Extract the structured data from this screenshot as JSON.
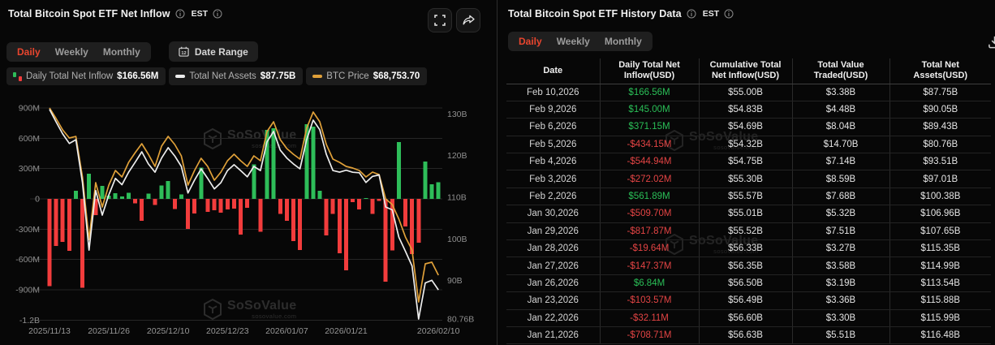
{
  "watermark": {
    "brand": "SoSoValue",
    "domain": "sosovalue.com"
  },
  "left_panel": {
    "title": "Total Bitcoin Spot ETF Net Inflow",
    "est_label": "EST",
    "tabs": [
      "Daily",
      "Weekly",
      "Monthly"
    ],
    "active_tab": "Daily",
    "date_range_label": "Date Range",
    "legend": [
      {
        "label": "Daily Total Net Inflow",
        "value": "$166.56M",
        "icon": "mini-bars-green-red"
      },
      {
        "label": "Total Net Assets",
        "value": "$87.75B",
        "icon": "dash",
        "color": "#ededed"
      },
      {
        "label": "BTC Price",
        "value": "$68,753.70",
        "icon": "dash",
        "color": "#dfa039"
      }
    ]
  },
  "right_panel": {
    "title": "Total Bitcoin Spot ETF History Data",
    "est_label": "EST",
    "tabs": [
      "Daily",
      "Weekly",
      "Monthly"
    ],
    "active_tab": "Daily",
    "table": {
      "columns": [
        "Date",
        "Daily Total Net Inflow(USD)",
        "Cumulative Total Net Inflow(USD)",
        "Total Value Traded(USD)",
        "Total Net Assets(USD)"
      ],
      "rows": [
        [
          "Feb 10,2026",
          "$166.56M",
          "$55.00B",
          "$3.38B",
          "$87.75B"
        ],
        [
          "Feb 9,2026",
          "$145.00M",
          "$54.83B",
          "$4.48B",
          "$90.05B"
        ],
        [
          "Feb 6,2026",
          "$371.15M",
          "$54.69B",
          "$8.04B",
          "$89.43B"
        ],
        [
          "Feb 5,2026",
          "-$434.15M",
          "$54.32B",
          "$14.70B",
          "$80.76B"
        ],
        [
          "Feb 4,2026",
          "-$544.94M",
          "$54.75B",
          "$7.14B",
          "$93.51B"
        ],
        [
          "Feb 3,2026",
          "-$272.02M",
          "$55.30B",
          "$8.59B",
          "$97.01B"
        ],
        [
          "Feb 2,2026",
          "$561.89M",
          "$55.57B",
          "$7.68B",
          "$100.38B"
        ],
        [
          "Jan 30,2026",
          "-$509.70M",
          "$55.01B",
          "$5.32B",
          "$106.96B"
        ],
        [
          "Jan 29,2026",
          "-$817.87M",
          "$55.52B",
          "$7.51B",
          "$107.65B"
        ],
        [
          "Jan 28,2026",
          "-$19.64M",
          "$56.33B",
          "$3.27B",
          "$115.35B"
        ],
        [
          "Jan 27,2026",
          "-$147.37M",
          "$56.35B",
          "$3.58B",
          "$114.99B"
        ],
        [
          "Jan 26,2026",
          "$6.84M",
          "$56.50B",
          "$3.19B",
          "$113.54B"
        ],
        [
          "Jan 23,2026",
          "-$103.57M",
          "$56.49B",
          "$3.36B",
          "$115.88B"
        ],
        [
          "Jan 22,2026",
          "-$32.11M",
          "$56.60B",
          "$3.30B",
          "$115.99B"
        ],
        [
          "Jan 21,2026",
          "-$708.71M",
          "$56.63B",
          "$5.51B",
          "$116.48B"
        ]
      ]
    }
  },
  "chart_data": {
    "type": "bar+line combo",
    "title": "Total Bitcoin Spot ETF Net Inflow",
    "grid": true,
    "legend_position": "top",
    "x_dates": [
      "2025/11/13",
      "2025/11/14",
      "2025/11/17",
      "2025/11/18",
      "2025/11/19",
      "2025/11/20",
      "2025/11/21",
      "2025/11/24",
      "2025/11/25",
      "2025/11/26",
      "2025/11/28",
      "2025/12/01",
      "2025/12/02",
      "2025/12/03",
      "2025/12/04",
      "2025/12/05",
      "2025/12/08",
      "2025/12/09",
      "2025/12/10",
      "2025/12/11",
      "2025/12/12",
      "2025/12/15",
      "2025/12/16",
      "2025/12/17",
      "2025/12/18",
      "2025/12/19",
      "2025/12/22",
      "2025/12/23",
      "2025/12/24",
      "2025/12/26",
      "2025/12/29",
      "2025/12/30",
      "2025/12/31",
      "2026/01/02",
      "2026/01/05",
      "2026/01/06",
      "2026/01/07",
      "2026/01/08",
      "2026/01/09",
      "2026/01/12",
      "2026/01/13",
      "2026/01/14",
      "2026/01/15",
      "2026/01/16",
      "2026/01/20",
      "2026/01/21",
      "2026/01/22",
      "2026/01/23",
      "2026/01/26",
      "2026/01/27",
      "2026/01/28",
      "2026/01/29",
      "2026/01/30",
      "2026/02/02",
      "2026/02/03",
      "2026/02/04",
      "2026/02/05",
      "2026/02/06",
      "2026/02/09",
      "2026/02/10"
    ],
    "x_tick_labels": [
      "2025/11/13",
      "2025/11/26",
      "2025/12/10",
      "2025/12/23",
      "2026/01/07",
      "2026/01/21",
      "2026/02/10"
    ],
    "x_tick_indices": [
      0,
      9,
      18,
      27,
      36,
      45,
      59
    ],
    "left_axis": {
      "unit": "M USD",
      "ticks": [
        "900M",
        "600M",
        "300M",
        "0",
        "-300M",
        "-600M",
        "-900M",
        "-1.2B"
      ],
      "values": [
        900,
        600,
        300,
        0,
        -300,
        -600,
        -900,
        -1200
      ]
    },
    "right_axis": {
      "unit": "B USD",
      "ticks": [
        "130B",
        "120B",
        "110B",
        "100B",
        "90B",
        "80.76B"
      ],
      "values": [
        130,
        120,
        110,
        100,
        90,
        80.76
      ],
      "min": 80.76
    },
    "series": {
      "daily_net_inflow_musd": {
        "name": "Daily Total Net Inflow",
        "type": "bar",
        "color_positive": "#2ebd59",
        "color_negative": "#f23c3c",
        "values": [
          -862,
          -468,
          -425,
          -515,
          82,
          -878,
          248,
          -162,
          128,
          34,
          58,
          25,
          60,
          -45,
          -215,
          52,
          -62,
          132,
          178,
          -102,
          46,
          -298,
          -144,
          310,
          -128,
          -112,
          -135,
          -104,
          -96,
          -355,
          -88,
          342,
          -324,
          683,
          701,
          -148,
          -215,
          -418,
          -505,
          738,
          715,
          82,
          -362,
          -148,
          -540,
          -708.71,
          -32.11,
          -103.57,
          6.84,
          -147.37,
          -19.64,
          -817.87,
          -509.7,
          561.89,
          -272.02,
          -544.94,
          -434.15,
          371.15,
          145,
          166.56
        ]
      },
      "total_net_assets_busd": {
        "name": "Total Net Assets",
        "type": "line",
        "axis": "right",
        "color": "#ededed",
        "values": [
          131.1,
          128.1,
          125.2,
          122.9,
          123.8,
          113.5,
          97.3,
          111.6,
          105.7,
          110.6,
          114.5,
          113.0,
          116.0,
          118.4,
          120.9,
          118.0,
          116.0,
          119.4,
          121.9,
          119.9,
          117.4,
          111.0,
          114.1,
          116.8,
          114.5,
          112.0,
          113.5,
          116.4,
          117.8,
          116.4,
          114.9,
          117.4,
          116.4,
          123.3,
          125.8,
          121.3,
          119.4,
          118.0,
          116.8,
          123.8,
          128.5,
          126.2,
          120.3,
          116.4,
          116.0,
          116.48,
          115.99,
          115.88,
          113.54,
          114.99,
          115.35,
          107.65,
          106.96,
          100.38,
          97.01,
          93.51,
          80.76,
          89.43,
          90.05,
          87.75
        ]
      },
      "btc_price_usd": {
        "name": "BTC Price",
        "type": "line",
        "axis": "hidden",
        "color": "#dfa039",
        "last_value": 68753.7,
        "values": [
          96860,
          95090,
          93180,
          91810,
          92080,
          85270,
          74750,
          84310,
          80210,
          83900,
          86350,
          85270,
          87720,
          89360,
          90860,
          89090,
          87040,
          90450,
          92090,
          90720,
          88810,
          83900,
          86350,
          88400,
          87040,
          84720,
          86080,
          87990,
          89090,
          87990,
          87040,
          88810,
          87990,
          92900,
          94540,
          91540,
          90040,
          89090,
          88260,
          93450,
          96180,
          94540,
          90720,
          88260,
          87720,
          87040,
          86770,
          86350,
          85270,
          86080,
          85670,
          81580,
          80620,
          78170,
          75160,
          72980,
          64250,
          70660,
          70940,
          68753.7
        ]
      }
    }
  }
}
